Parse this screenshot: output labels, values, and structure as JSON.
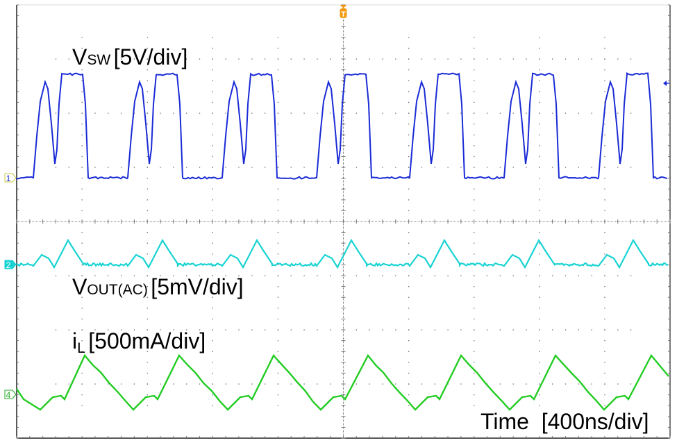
{
  "chart_data": {
    "type": "line",
    "title": "",
    "instrument": "oscilloscope",
    "grid": {
      "on": true,
      "x_divisions": 10,
      "y_divisions": 8
    },
    "xlabel": "Time [400ns/div]",
    "time_per_div_ns": 400,
    "trigger_marker": "T",
    "series": [
      {
        "name": "VSW",
        "channel": "1",
        "label_main": "V",
        "label_sub": "SW",
        "label_unit": "[5V/div]",
        "scale": "5V/div",
        "color": "#1a2bd6",
        "description": "Switch-node voltage: low level ~0V, two-pulse bursts (hump peak ~2.5 div then flat top ~3.2 div), period ~1.45 div"
      },
      {
        "name": "VOUT(AC)",
        "channel": "2",
        "label_main": "V",
        "label_sub": "OUT(AC)",
        "label_unit": "[5mV/div]",
        "scale": "5mV/div",
        "color": "#19d3d3",
        "description": "Output ripple: small bump (~0.3 div) then larger triangle peak (~0.7 div)"
      },
      {
        "name": "iL",
        "channel": "4",
        "label_main": "i",
        "label_sub": "L",
        "label_unit": "[500mA/div]",
        "scale": "500mA/div",
        "color": "#22cc22",
        "description": "Inductor current: triangular, peak ~+1.5 div, valley ~-0.3 div relative to ch4 reference, with small plateau on rising edge"
      }
    ]
  },
  "markers": {
    "ch1": "1",
    "ch2": "2",
    "ch4": "4",
    "trigger": "T"
  },
  "labels": {
    "vsw_main": "V",
    "vsw_sub": "SW",
    "vsw_unit": "[5V/div]",
    "vout_main": "V",
    "vout_sub": "OUT(AC)",
    "vout_unit": "[5mV/div]",
    "il_main": "i",
    "il_sub": "L",
    "il_unit": "[500mA/div]",
    "time": "Time  [400ns/div]"
  }
}
